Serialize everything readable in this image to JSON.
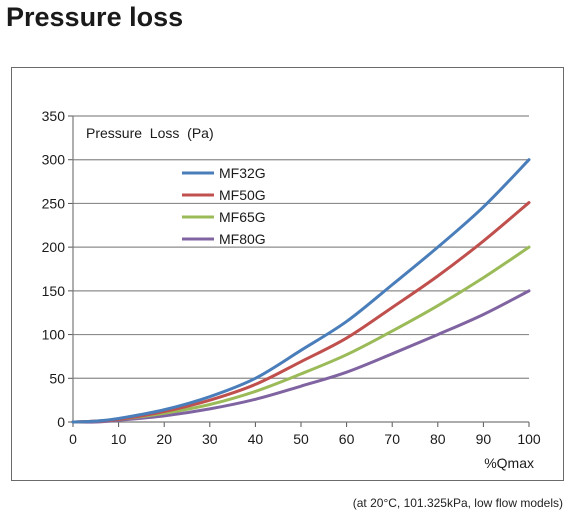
{
  "page": {
    "title": "Pressure loss",
    "footnote": "(at 20°C, 101.325kPa, low flow models)"
  },
  "chart_data": {
    "type": "line",
    "title": "",
    "ylabel": "Pressure  Loss  (Pa)",
    "xlabel": "%Qmax",
    "xlim": [
      0,
      100
    ],
    "ylim": [
      0,
      350
    ],
    "x_ticks": [
      0,
      10,
      20,
      30,
      40,
      50,
      60,
      70,
      80,
      90,
      100
    ],
    "y_ticks": [
      0,
      50,
      100,
      150,
      200,
      250,
      300,
      350
    ],
    "grid": "horizontal",
    "legend_position": "upper-left",
    "x": [
      0,
      5,
      10,
      20,
      30,
      40,
      50,
      60,
      70,
      80,
      90,
      100
    ],
    "series": [
      {
        "name": "MF32G",
        "color": "#4a7ebb",
        "values": [
          0,
          1,
          4,
          14,
          29,
          50,
          82,
          115,
          157,
          200,
          246,
          300
        ]
      },
      {
        "name": "MF50G",
        "color": "#c0504d",
        "values": [
          0,
          1,
          3,
          12,
          25,
          43,
          69,
          96,
          131,
          167,
          207,
          251
        ]
      },
      {
        "name": "MF65G",
        "color": "#9bbb59",
        "values": [
          0,
          1,
          3,
          10,
          20,
          35,
          55,
          77,
          104,
          133,
          165,
          200
        ]
      },
      {
        "name": "MF80G",
        "color": "#8064a2",
        "values": [
          0,
          0,
          2,
          7,
          15,
          26,
          41,
          57,
          78,
          100,
          123,
          150
        ]
      }
    ]
  }
}
